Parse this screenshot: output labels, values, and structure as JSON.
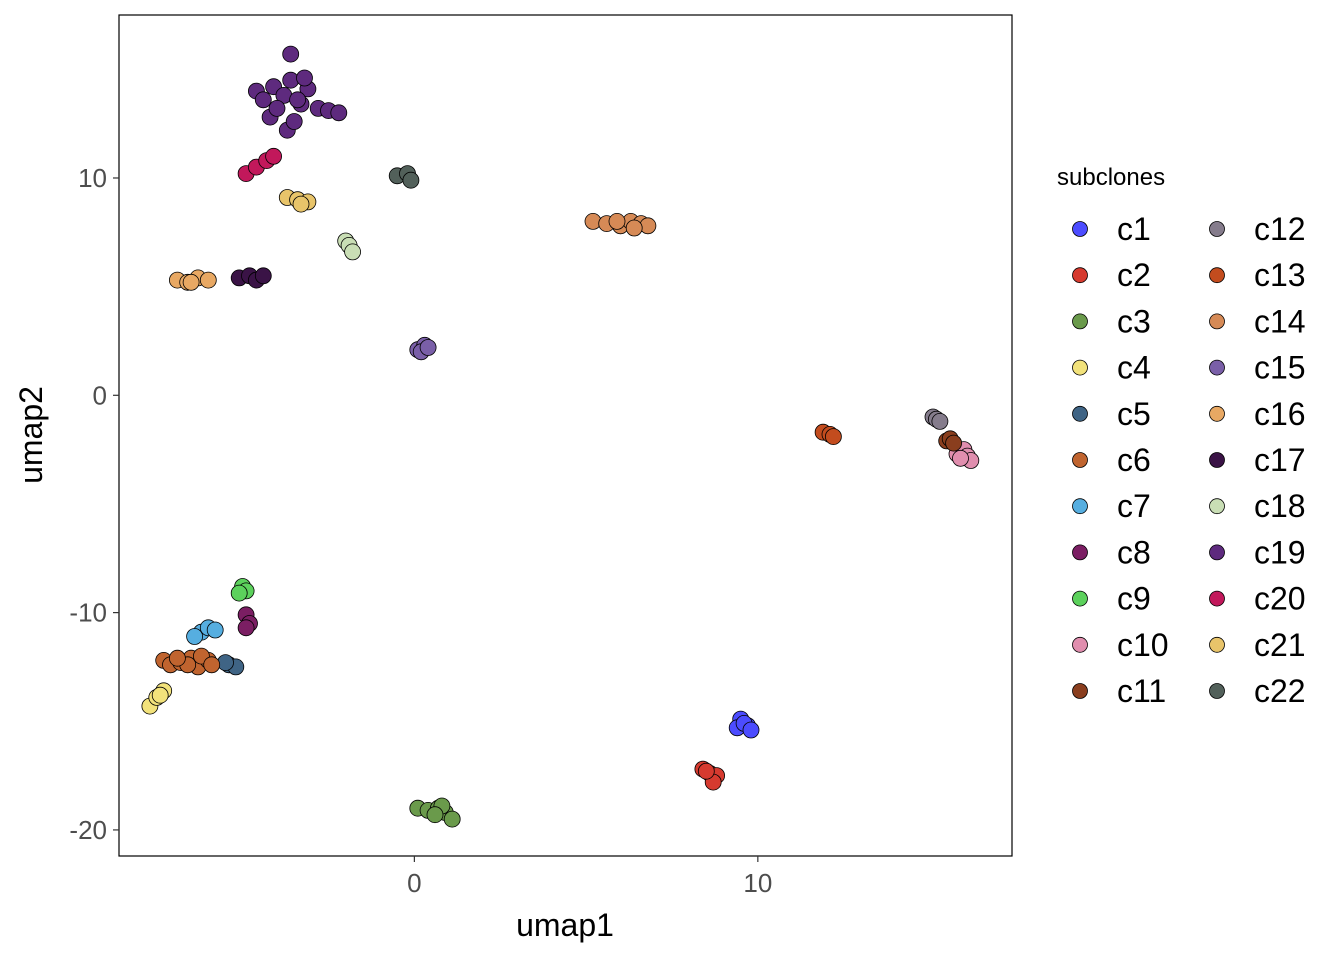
{
  "chart_data": {
    "type": "scatter",
    "xlabel": "umap1",
    "ylabel": "umap2",
    "xlim": [
      -8.6,
      17.4
    ],
    "ylim": [
      -21.2,
      17.5
    ],
    "x_ticks": [
      0,
      10
    ],
    "x_tick_labels": [
      "0",
      "10"
    ],
    "y_ticks": [
      -20,
      -10,
      0,
      10
    ],
    "y_tick_labels": [
      "-20",
      "-10",
      "0",
      "10"
    ],
    "grid": false,
    "legend": {
      "title": "subclones",
      "position": "right",
      "columns": 2
    },
    "series": [
      {
        "name": "c1",
        "color": "#4C4CFF",
        "points": [
          [
            9.5,
            -14.9
          ],
          [
            9.7,
            -15.2
          ],
          [
            9.4,
            -15.3
          ],
          [
            9.6,
            -15.1
          ],
          [
            9.8,
            -15.4
          ]
        ]
      },
      {
        "name": "c2",
        "color": "#D63A2F",
        "points": [
          [
            8.4,
            -17.2
          ],
          [
            8.6,
            -17.4
          ],
          [
            8.8,
            -17.5
          ],
          [
            8.7,
            -17.8
          ],
          [
            8.5,
            -17.3
          ]
        ]
      },
      {
        "name": "c3",
        "color": "#6A9A4B",
        "points": [
          [
            0.1,
            -19.0
          ],
          [
            0.4,
            -19.1
          ],
          [
            0.7,
            -19.0
          ],
          [
            0.9,
            -19.2
          ],
          [
            1.1,
            -19.5
          ],
          [
            0.8,
            -18.9
          ],
          [
            0.6,
            -19.3
          ]
        ]
      },
      {
        "name": "c4",
        "color": "#F2E27B",
        "points": [
          [
            -7.7,
            -14.3
          ],
          [
            -7.5,
            -13.9
          ],
          [
            -7.3,
            -13.6
          ],
          [
            -7.4,
            -13.8
          ]
        ]
      },
      {
        "name": "c5",
        "color": "#3F6485",
        "points": [
          [
            -5.4,
            -12.4
          ],
          [
            -5.2,
            -12.5
          ],
          [
            -5.5,
            -12.3
          ]
        ]
      },
      {
        "name": "c6",
        "color": "#C0642F",
        "points": [
          [
            -7.3,
            -12.2
          ],
          [
            -7.1,
            -12.4
          ],
          [
            -6.8,
            -12.3
          ],
          [
            -6.5,
            -12.1
          ],
          [
            -6.3,
            -12.5
          ],
          [
            -6.0,
            -12.2
          ],
          [
            -6.2,
            -12.0
          ],
          [
            -5.9,
            -12.4
          ],
          [
            -6.6,
            -12.4
          ],
          [
            -6.9,
            -12.1
          ]
        ]
      },
      {
        "name": "c7",
        "color": "#56AEE0",
        "points": [
          [
            -6.2,
            -10.9
          ],
          [
            -6.0,
            -10.7
          ],
          [
            -5.8,
            -10.8
          ],
          [
            -6.4,
            -11.1
          ]
        ]
      },
      {
        "name": "c8",
        "color": "#7B1E63",
        "points": [
          [
            -4.9,
            -10.1
          ],
          [
            -4.8,
            -10.5
          ],
          [
            -4.9,
            -10.7
          ]
        ]
      },
      {
        "name": "c9",
        "color": "#5CD15C",
        "points": [
          [
            -5.0,
            -8.8
          ],
          [
            -4.9,
            -9.0
          ],
          [
            -5.1,
            -9.1
          ]
        ]
      },
      {
        "name": "c10",
        "color": "#E08EAE",
        "points": [
          [
            15.8,
            -2.7
          ],
          [
            16.0,
            -2.5
          ],
          [
            16.1,
            -2.8
          ],
          [
            16.2,
            -3.0
          ],
          [
            15.9,
            -2.9
          ]
        ]
      },
      {
        "name": "c11",
        "color": "#8A3E1E",
        "points": [
          [
            15.5,
            -2.1
          ],
          [
            15.6,
            -2.0
          ],
          [
            15.7,
            -2.2
          ]
        ]
      },
      {
        "name": "c12",
        "color": "#857C8C",
        "points": [
          [
            15.1,
            -1.0
          ],
          [
            15.2,
            -1.1
          ],
          [
            15.3,
            -1.2
          ]
        ]
      },
      {
        "name": "c13",
        "color": "#C34C1E",
        "points": [
          [
            11.9,
            -1.7
          ],
          [
            12.1,
            -1.8
          ],
          [
            12.2,
            -1.9
          ]
        ]
      },
      {
        "name": "c14",
        "color": "#D68A56",
        "points": [
          [
            5.2,
            8.0
          ],
          [
            5.6,
            7.9
          ],
          [
            6.0,
            7.8
          ],
          [
            6.3,
            8.0
          ],
          [
            6.6,
            7.9
          ],
          [
            6.8,
            7.8
          ],
          [
            6.4,
            7.7
          ],
          [
            5.9,
            8.0
          ]
        ]
      },
      {
        "name": "c15",
        "color": "#7A5FA8",
        "points": [
          [
            0.1,
            2.1
          ],
          [
            0.3,
            2.3
          ],
          [
            0.2,
            2.0
          ],
          [
            0.4,
            2.2
          ]
        ]
      },
      {
        "name": "c16",
        "color": "#E8A863",
        "points": [
          [
            -6.9,
            5.3
          ],
          [
            -6.6,
            5.2
          ],
          [
            -6.3,
            5.4
          ],
          [
            -6.0,
            5.3
          ],
          [
            -6.5,
            5.2
          ]
        ]
      },
      {
        "name": "c17",
        "color": "#3A1346",
        "points": [
          [
            -5.1,
            5.4
          ],
          [
            -4.8,
            5.5
          ],
          [
            -4.6,
            5.3
          ],
          [
            -4.4,
            5.5
          ]
        ]
      },
      {
        "name": "c18",
        "color": "#C9DEB5",
        "points": [
          [
            -2.0,
            7.1
          ],
          [
            -1.9,
            6.9
          ],
          [
            -1.8,
            6.6
          ]
        ]
      },
      {
        "name": "c19",
        "color": "#5E2A7E",
        "points": [
          [
            -4.6,
            14.0
          ],
          [
            -4.4,
            13.6
          ],
          [
            -4.1,
            14.2
          ],
          [
            -3.8,
            13.8
          ],
          [
            -3.6,
            14.5
          ],
          [
            -3.3,
            13.4
          ],
          [
            -3.1,
            14.1
          ],
          [
            -2.8,
            13.2
          ],
          [
            -2.5,
            13.1
          ],
          [
            -2.2,
            13.0
          ],
          [
            -3.7,
            12.2
          ],
          [
            -3.5,
            12.6
          ],
          [
            -3.6,
            15.7
          ],
          [
            -4.2,
            12.8
          ],
          [
            -3.2,
            14.6
          ],
          [
            -4.0,
            13.2
          ],
          [
            -3.4,
            13.6
          ]
        ]
      },
      {
        "name": "c20",
        "color": "#C2185B",
        "points": [
          [
            -4.9,
            10.2
          ],
          [
            -4.6,
            10.5
          ],
          [
            -4.3,
            10.8
          ],
          [
            -4.1,
            11.0
          ]
        ]
      },
      {
        "name": "c21",
        "color": "#E8C46A",
        "points": [
          [
            -3.7,
            9.1
          ],
          [
            -3.4,
            9.0
          ],
          [
            -3.1,
            8.9
          ],
          [
            -3.3,
            8.8
          ]
        ]
      },
      {
        "name": "c22",
        "color": "#52605A",
        "points": [
          [
            -0.5,
            10.1
          ],
          [
            -0.2,
            10.2
          ],
          [
            -0.1,
            9.9
          ]
        ]
      }
    ]
  }
}
